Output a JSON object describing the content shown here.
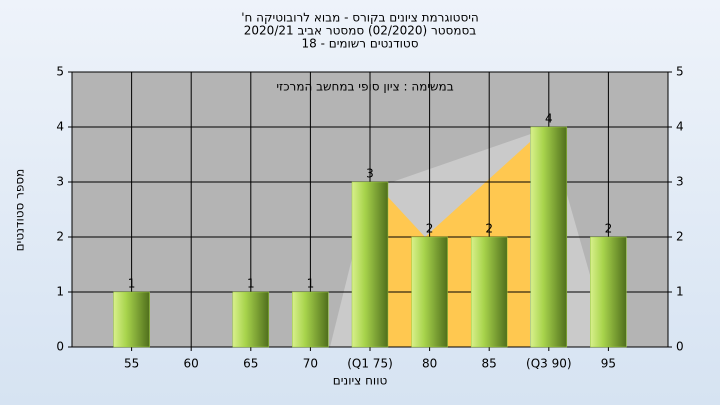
{
  "chart_data": {
    "type": "bar",
    "title": "היסטוגרמת ציונים בקורס - מבוא לרובוטיקה ח'",
    "subtitle": "בסמסטר  (02/2020)  סמסטר אביב 2020/21",
    "subtitle2": "סטודנטים רשומים - 18",
    "annotation": "במשימה : ציון סופי במחשב המרכזי",
    "y_label": "מספר סטודנטים",
    "x_label": "טווח ציונים",
    "categories": [
      "55",
      "60",
      "65",
      "70",
      "(Q1 75)",
      "80",
      "85",
      "(Q3 90)",
      "95"
    ],
    "values": [
      1,
      0,
      1,
      1,
      3,
      2,
      2,
      4,
      2
    ],
    "value_labels": [
      "1",
      null,
      "1",
      "1",
      "3",
      "2",
      "2",
      "4",
      "2"
    ],
    "color": "#9ccc3c",
    "ylim": [
      0,
      5
    ],
    "yticks": [
      0,
      1,
      2,
      3,
      4,
      5
    ],
    "grid": true
  }
}
